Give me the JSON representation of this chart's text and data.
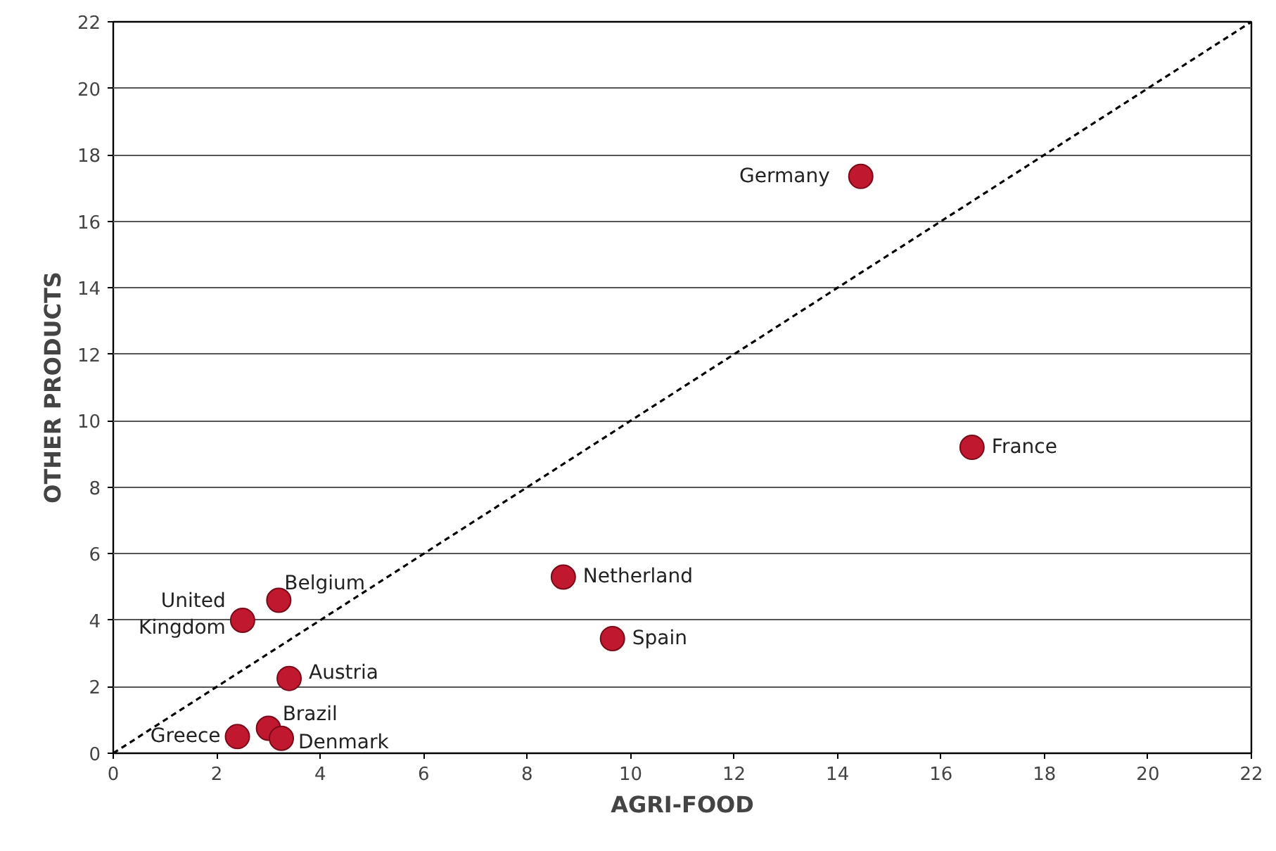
{
  "chart_data": {
    "type": "scatter",
    "xlabel": "AGRI-FOOD",
    "ylabel": "OTHER PRODUCTS",
    "xlim": [
      0,
      22
    ],
    "ylim": [
      0,
      22
    ],
    "xticks": [
      0,
      2,
      4,
      6,
      8,
      10,
      12,
      14,
      16,
      18,
      20,
      22
    ],
    "yticks": [
      0,
      2,
      4,
      6,
      8,
      10,
      12,
      14,
      16,
      18,
      20,
      22
    ],
    "grid": "y",
    "marker": "circle",
    "series": [
      {
        "color": "#c0182f",
        "x": [
          14.45,
          16.6,
          8.7,
          9.65,
          3.2,
          2.5,
          3.4,
          3.0,
          2.4,
          3.25
        ],
        "values": [
          17.35,
          9.2,
          5.3,
          3.45,
          4.6,
          4.0,
          2.25,
          0.75,
          0.5,
          0.45
        ]
      },
      {
        "type": "line",
        "color": "#000000",
        "line_style": "dashed",
        "marker": "none",
        "x": [
          0,
          22
        ],
        "values": [
          0,
          22
        ]
      }
    ],
    "annotations": [
      {
        "text": "Germany",
        "x": 14.45,
        "y": 17.35
      },
      {
        "text": "France",
        "x": 16.6,
        "y": 9.2
      },
      {
        "text": "Netherland",
        "x": 8.7,
        "y": 5.3
      },
      {
        "text": "Spain",
        "x": 9.65,
        "y": 3.45
      },
      {
        "text": "Belgium",
        "x": 3.2,
        "y": 4.6
      },
      {
        "text": "United\nKingdom",
        "x": 2.5,
        "y": 4.0
      },
      {
        "text": "Austria",
        "x": 3.4,
        "y": 2.25
      },
      {
        "text": "Brazil",
        "x": 3.0,
        "y": 0.75
      },
      {
        "text": "Greece",
        "x": 2.4,
        "y": 0.5
      },
      {
        "text": "Denmark",
        "x": 3.25,
        "y": 0.45
      }
    ]
  }
}
